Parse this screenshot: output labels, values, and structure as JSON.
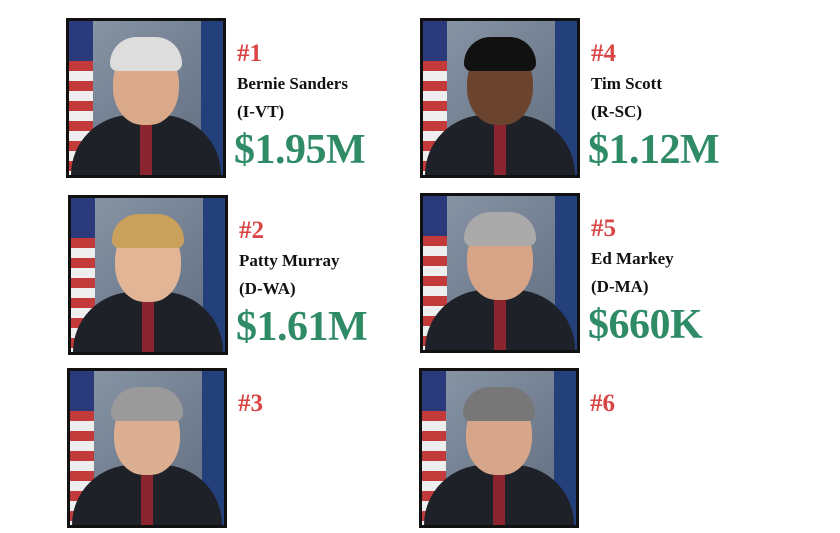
{
  "senators": [
    {
      "rank": "#1",
      "name": "Bernie Sanders",
      "party": "(I-VT)",
      "amount": "$1.95M"
    },
    {
      "rank": "#2",
      "name": "Patty Murray",
      "party": "(D-WA)",
      "amount": "$1.61M"
    },
    {
      "rank": "#3",
      "name": "",
      "party": "",
      "amount": ""
    },
    {
      "rank": "#4",
      "name": "Tim Scott",
      "party": "(R-SC)",
      "amount": "$1.12M"
    },
    {
      "rank": "#5",
      "name": "Ed Markey",
      "party": "(D-MA)",
      "amount": "$660K"
    },
    {
      "rank": "#6",
      "name": "",
      "party": "",
      "amount": ""
    }
  ],
  "colors": {
    "rank": "#d94545",
    "amount": "#2e8b66"
  }
}
